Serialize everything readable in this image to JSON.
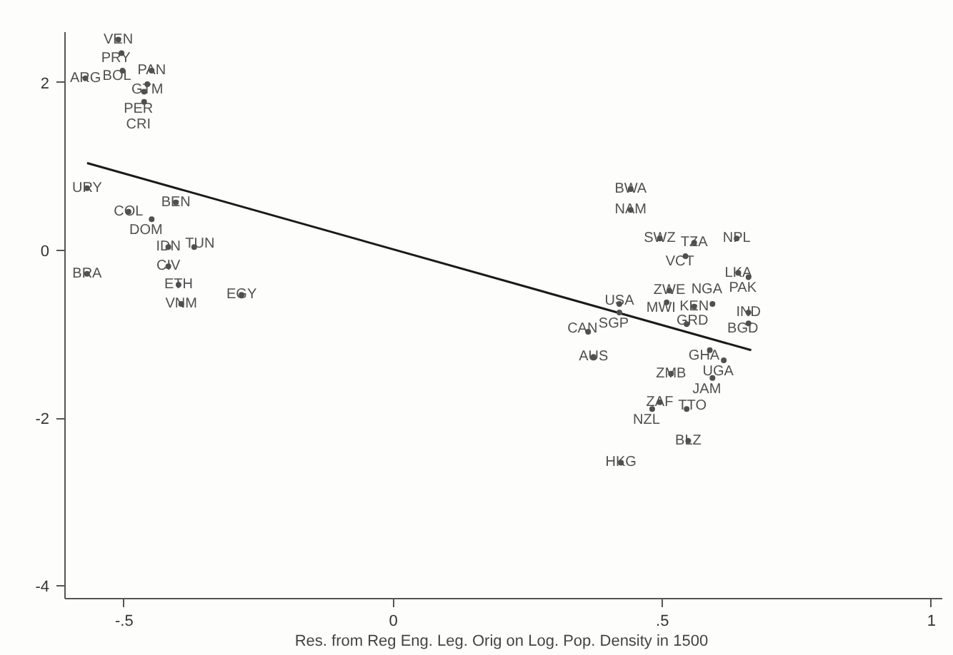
{
  "chart_data": {
    "type": "scatter",
    "xlabel": "Res. from Reg  Eng. Leg. Orig on Log. Pop. Density in 1500",
    "xlim": [
      -0.61,
      1.02
    ],
    "ylim": [
      -4.15,
      2.6
    ],
    "xticks": [
      {
        "value": -0.5,
        "label": "-.5"
      },
      0,
      {
        "value": 0.5,
        "label": ".5"
      },
      1
    ],
    "yticks": [
      -4,
      -2,
      0,
      2
    ],
    "grid": false,
    "series": [
      {
        "color": "#505050",
        "marker": "circle",
        "x": [
          -0.511,
          -0.505,
          -0.572,
          -0.503,
          -0.449,
          -0.457,
          -0.463,
          -0.463,
          -0.569,
          -0.569,
          -0.418,
          -0.37,
          -0.418,
          -0.399,
          -0.394,
          -0.282,
          -0.492,
          -0.449,
          -0.404,
          0.441,
          0.441,
          0.495,
          0.559,
          0.638,
          0.543,
          0.641,
          0.66,
          0.513,
          0.508,
          0.559,
          0.593,
          0.42,
          0.42,
          0.66,
          0.66,
          0.545,
          0.362,
          0.372,
          0.588,
          0.614,
          0.516,
          0.593,
          0.495,
          0.481,
          0.545,
          0.548,
          0.423
        ],
        "values": [
          2.51,
          2.35,
          2.05,
          2.14,
          2.14,
          1.98,
          1.89,
          1.77,
          0.74,
          -0.28,
          0.04,
          0.04,
          -0.19,
          -0.41,
          -0.64,
          -0.53,
          0.46,
          0.37,
          0.57,
          0.73,
          0.48,
          0.14,
          0.09,
          0.14,
          -0.07,
          -0.27,
          -0.32,
          -0.48,
          -0.62,
          -0.67,
          -0.64,
          -0.64,
          -0.74,
          -0.74,
          -0.87,
          -0.88,
          -0.97,
          -1.27,
          -1.19,
          -1.31,
          -1.47,
          -1.52,
          -1.81,
          -1.89,
          -1.89,
          -2.27,
          -2.53
        ],
        "value_labels": [
          "VEN",
          "PRY",
          "ARG",
          "BOL",
          "PAN",
          "GTM",
          "PER",
          "CRI",
          "URY",
          "BRA",
          "IDN",
          "TUN",
          "CIV",
          "ETH",
          "VNM",
          "EGY",
          "COL",
          "DOM",
          "BEN",
          "BWA",
          "NAM",
          "SWZ",
          "TZA",
          "NPL",
          "VCT",
          "LKA",
          "PAK",
          "ZWE",
          "MWI",
          "KEN",
          "NGA",
          "USA",
          "SGP",
          "IND",
          "BGD",
          "GRD",
          "CAN",
          "AUS",
          "GHA",
          "UGA",
          "ZMB",
          "JAM",
          "ZAF",
          "NZL",
          "TTO",
          "BLZ",
          "HKG"
        ]
      },
      {
        "type": "line",
        "marker": "none",
        "color": "#1a1a1a",
        "x": [
          -0.569,
          0.665
        ],
        "values": [
          1.04,
          -1.19
        ]
      }
    ]
  }
}
